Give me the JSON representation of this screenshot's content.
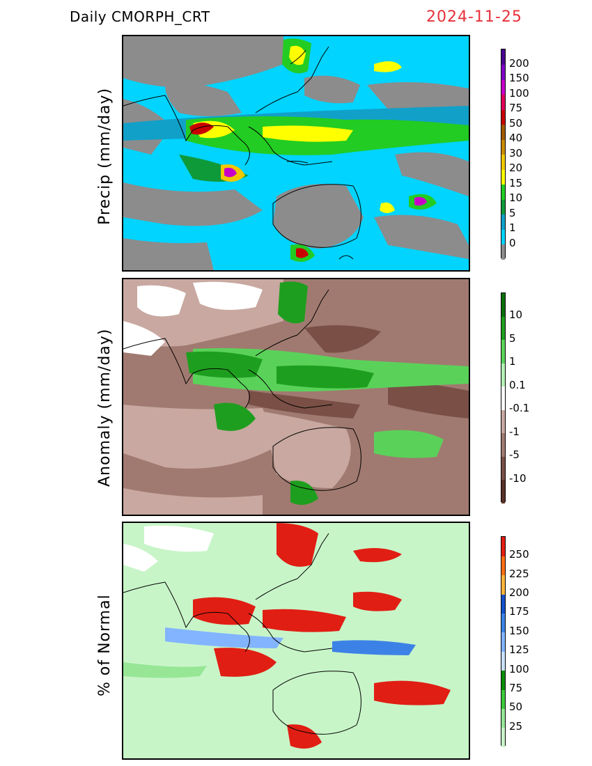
{
  "header": {
    "title": "Daily  CMORPH_CRT",
    "date": "2024-11-25"
  },
  "panels": [
    {
      "id": "precip",
      "ylabel": "Precip (mm/day)",
      "colors": [
        "#8c8c8c",
        "#00d4ff",
        "#11a0c8",
        "#0f9a3a",
        "#22cc22",
        "#ffff00",
        "#f0c800",
        "#c88c00",
        "#a05a00",
        "#c80000",
        "#e0005a",
        "#c800c8",
        "#8000c8",
        "#4a0090"
      ],
      "labels": [
        "0",
        "1",
        "5",
        "10",
        "15",
        "20",
        "30",
        "40",
        "50",
        "75",
        "100",
        "150",
        "200"
      ]
    },
    {
      "id": "anomaly",
      "ylabel": "Anomaly (mm/day)",
      "colors": [
        "#5a3228",
        "#7a5046",
        "#a07a70",
        "#c8a8a0",
        "#ffffff",
        "#b4f0b4",
        "#5ad25a",
        "#1e9e1e",
        "#0a6e0a"
      ],
      "labels": [
        "-10",
        "-5",
        "-1",
        "-0.1",
        "0.1",
        "1",
        "5",
        "10"
      ]
    },
    {
      "id": "percent",
      "ylabel": "% of Normal",
      "colors": [
        "#c8f5c8",
        "#96e696",
        "#3cc83c",
        "#0a8c0a",
        "#c8e1ff",
        "#82b4ff",
        "#3c82e6",
        "#1450c8",
        "#ffb43c",
        "#ff6e14",
        "#e11e14"
      ],
      "labels": [
        "25",
        "50",
        "75",
        "100",
        "125",
        "150",
        "175",
        "200",
        "225",
        "250"
      ]
    }
  ]
}
